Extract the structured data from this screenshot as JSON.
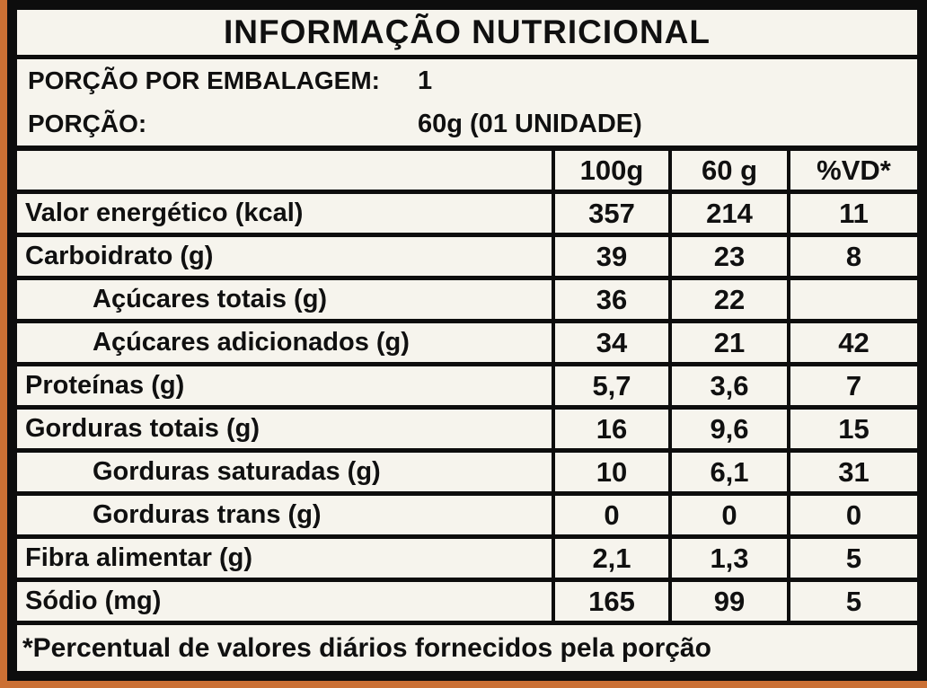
{
  "colors": {
    "frame": "#cb7034",
    "border": "#0d0d0d",
    "background": "#f6f4ed"
  },
  "title": "INFORMAÇÃO NUTRICIONAL",
  "package_info": [
    {
      "label": "PORÇÃO POR EMBALAGEM:",
      "value": "1"
    },
    {
      "label": "PORÇÃO:",
      "value": "60g (01 UNIDADE)"
    }
  ],
  "table": {
    "columns": [
      "100g",
      "60 g",
      "%VD*"
    ],
    "rows": [
      {
        "label": "Valor energético (kcal)",
        "indent": false,
        "values": [
          "357",
          "214",
          "11"
        ]
      },
      {
        "label": "Carboidrato (g)",
        "indent": false,
        "values": [
          "39",
          "23",
          "8"
        ]
      },
      {
        "label": "Açúcares totais (g)",
        "indent": true,
        "values": [
          "36",
          "22",
          ""
        ]
      },
      {
        "label": "Açúcares adicionados (g)",
        "indent": true,
        "values": [
          "34",
          "21",
          "42"
        ]
      },
      {
        "label": "Proteínas (g)",
        "indent": false,
        "values": [
          "5,7",
          "3,6",
          "7"
        ]
      },
      {
        "label": "Gorduras totais (g)",
        "indent": false,
        "values": [
          "16",
          "9,6",
          "15"
        ]
      },
      {
        "label": "Gorduras saturadas (g)",
        "indent": true,
        "values": [
          "10",
          "6,1",
          "31"
        ]
      },
      {
        "label": "Gorduras trans (g)",
        "indent": true,
        "values": [
          "0",
          "0",
          "0"
        ]
      },
      {
        "label": "Fibra alimentar (g)",
        "indent": false,
        "values": [
          "2,1",
          "1,3",
          "5"
        ]
      },
      {
        "label": "Sódio (mg)",
        "indent": false,
        "values": [
          "165",
          "99",
          "5"
        ]
      }
    ]
  },
  "footnote": "*Percentual de valores diários fornecidos pela porção"
}
